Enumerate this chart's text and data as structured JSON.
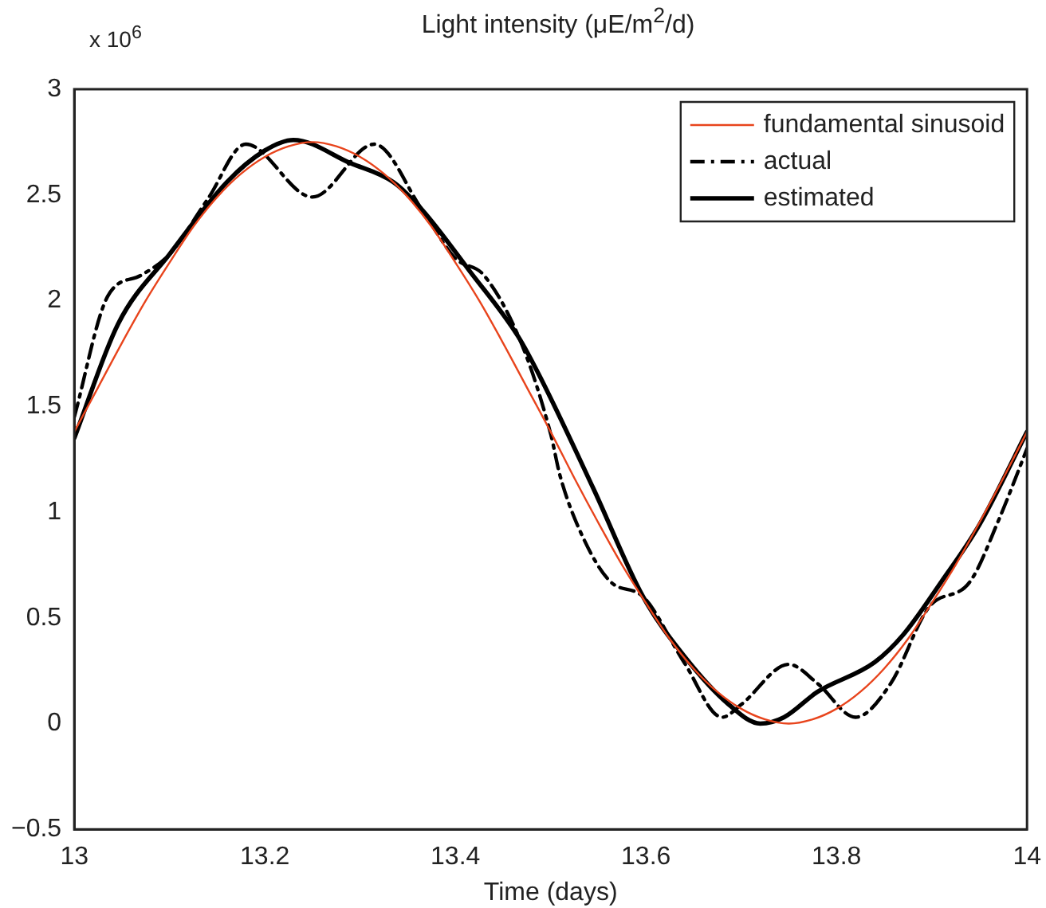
{
  "chart_data": {
    "type": "line",
    "title": "Light intensity (μE/m$^{2}$/d)",
    "xlabel": "Time (days)",
    "annotations": [
      "x 10$^{6}$"
    ],
    "xlim": [
      13,
      14
    ],
    "xticks": [
      13,
      13.2,
      13.4,
      13.6,
      13.8,
      14
    ],
    "ylim": [
      -0.5,
      3
    ],
    "yticks": [
      {
        "value": -0.5,
        "label": "−0.5"
      },
      0,
      0.5,
      1,
      1.5,
      2,
      2.5,
      3
    ],
    "grid": false,
    "legend": "top right",
    "marker": "none",
    "series": [
      {
        "name": "fundamental sinusoid",
        "color": "#e8441c",
        "line_style": "solid",
        "x": [
          13,
          13.025,
          13.05,
          13.075,
          13.1,
          13.125,
          13.15,
          13.175,
          13.2,
          13.225,
          13.25,
          13.275,
          13.3,
          13.325,
          13.35,
          13.375,
          13.4,
          13.425,
          13.45,
          13.475,
          13.5,
          13.525,
          13.55,
          13.575,
          13.6,
          13.625,
          13.65,
          13.675,
          13.7,
          13.725,
          13.75,
          13.775,
          13.8,
          13.825,
          13.85,
          13.875,
          13.9,
          13.925,
          13.95,
          13.975,
          14
        ],
        "values": [
          1.38,
          1.59,
          1.8,
          2.0,
          2.18,
          2.35,
          2.49,
          2.6,
          2.68,
          2.73,
          2.75,
          2.73,
          2.68,
          2.6,
          2.49,
          2.35,
          2.18,
          2.0,
          1.8,
          1.59,
          1.38,
          1.16,
          0.95,
          0.75,
          0.57,
          0.4,
          0.26,
          0.15,
          0.07,
          0.02,
          0,
          0.02,
          0.07,
          0.15,
          0.26,
          0.4,
          0.57,
          0.75,
          0.95,
          1.16,
          1.38
        ]
      },
      {
        "name": "actual",
        "color": "#000000",
        "line_style": "dashdot",
        "x": [
          13,
          13.035,
          13.07,
          13.1,
          13.14,
          13.18,
          13.25,
          13.315,
          13.365,
          13.4,
          13.43,
          13.47,
          13.5,
          13.51,
          13.534,
          13.563,
          13.597,
          13.64,
          13.68,
          13.7,
          13.75,
          13.78,
          13.82,
          13.857,
          13.897,
          13.94,
          13.97,
          14
        ],
        "values": [
          1.45,
          2.02,
          2.12,
          2.22,
          2.48,
          2.74,
          2.49,
          2.74,
          2.43,
          2.2,
          2.12,
          1.79,
          1.37,
          1.17,
          0.88,
          0.67,
          0.6,
          0.29,
          0.03,
          0.09,
          0.28,
          0.19,
          0.03,
          0.19,
          0.55,
          0.67,
          0.96,
          1.3
        ]
      },
      {
        "name": "estimated",
        "color": "#000000",
        "line_style": "solid",
        "x": [
          13,
          13.046,
          13.1,
          13.16,
          13.2,
          13.23,
          13.29,
          13.335,
          13.365,
          13.415,
          13.466,
          13.49,
          13.545,
          13.597,
          13.64,
          13.687,
          13.72,
          13.745,
          13.78,
          13.84,
          13.87,
          13.91,
          13.95,
          14
        ],
        "values": [
          1.35,
          1.89,
          2.22,
          2.56,
          2.71,
          2.76,
          2.65,
          2.56,
          2.43,
          2.14,
          1.83,
          1.63,
          1.11,
          0.6,
          0.32,
          0.09,
          0,
          0.03,
          0.15,
          0.29,
          0.42,
          0.67,
          0.94,
          1.38
        ]
      }
    ]
  }
}
